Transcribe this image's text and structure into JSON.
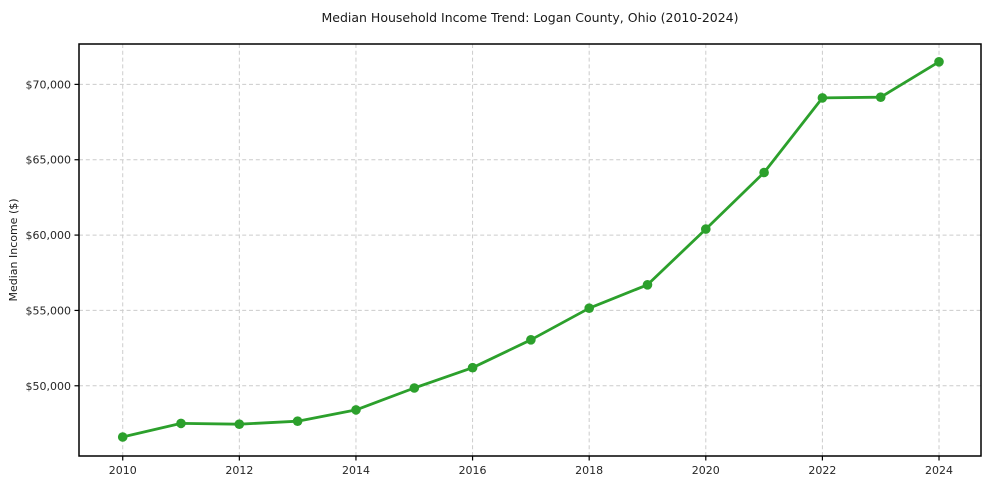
{
  "chart_data": {
    "type": "line",
    "title": "Median Household Income Trend: Logan County, Ohio (2010-2024)",
    "xlabel": "",
    "ylabel": "Median Income ($)",
    "x": [
      2010,
      2011,
      2012,
      2013,
      2014,
      2015,
      2016,
      2017,
      2018,
      2019,
      2020,
      2021,
      2022,
      2023,
      2024
    ],
    "series": [
      {
        "name": "Median Household Income",
        "values": [
          46600,
          47500,
          47450,
          47650,
          48400,
          49850,
          51200,
          53050,
          55150,
          56700,
          60400,
          64150,
          69100,
          69150,
          71500
        ]
      }
    ],
    "x_ticks": [
      2010,
      2012,
      2014,
      2016,
      2018,
      2020,
      2022,
      2024
    ],
    "x_tick_labels": [
      "2010",
      "2012",
      "2014",
      "2016",
      "2018",
      "2020",
      "2022",
      "2024"
    ],
    "y_ticks": [
      50000,
      55000,
      60000,
      65000,
      70000
    ],
    "y_tick_labels": [
      "$50,000",
      "$55,000",
      "$60,000",
      "$65,000",
      "$70,000"
    ],
    "xlim": [
      2009.25,
      2024.72
    ],
    "ylim": [
      45340,
      72680
    ],
    "grid": true,
    "grid_style": "dashed",
    "legend": "none",
    "marker": "circle",
    "colors": {
      "line": "#2ca02c",
      "marker": "#2ca02c",
      "grid": "#cccccc",
      "spine": "#000000",
      "text": "#1a1a1a"
    }
  }
}
